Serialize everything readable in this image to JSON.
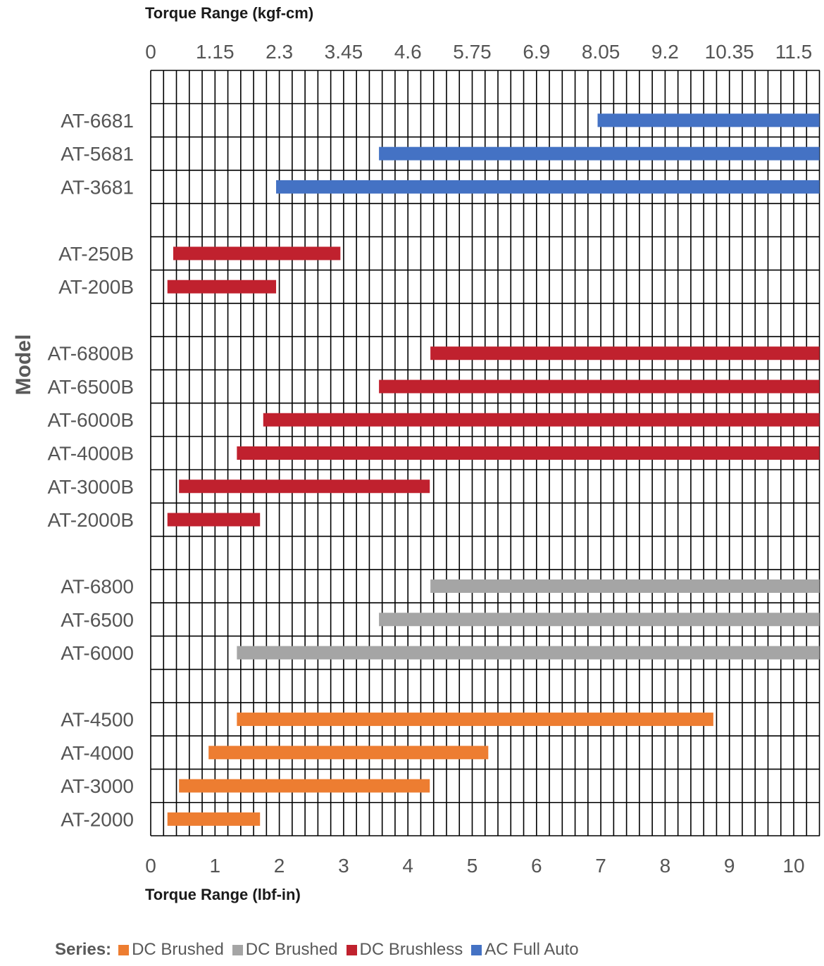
{
  "chart_data": {
    "type": "bar",
    "orientation": "horizontal-range",
    "title_top": "Torque Range (kgf-cm)",
    "xlabel": "Torque Range (lbf-in)",
    "ylabel": "Model",
    "xlim": [
      0,
      10.4
    ],
    "x_ticks": [
      "0",
      "1",
      "2",
      "3",
      "4",
      "5",
      "6",
      "7",
      "8",
      "9",
      "10"
    ],
    "x_ticks_top": [
      "0",
      "1.15",
      "2.3",
      "3.45",
      "4.6",
      "5.75",
      "6.9",
      "8.05",
      "9.2",
      "10.35",
      "11.5"
    ],
    "grid": true,
    "legend_placement": "bottom",
    "legend_title": "Series:",
    "legend": [
      {
        "label": "DC Brushed",
        "color": "#ed7d31"
      },
      {
        "label": "DC Brushed",
        "color": "#a5a5a5"
      },
      {
        "label": "DC Brushless",
        "color": "#c0212e"
      },
      {
        "label": "AC Full Auto",
        "color": "#4472c4"
      }
    ],
    "colors": {
      "orange": "#ed7d31",
      "gray": "#a5a5a5",
      "red": "#c0212e",
      "blue": "#4472c4"
    },
    "rows": [
      {
        "label": "",
        "start": null,
        "end": null,
        "color": null
      },
      {
        "label": "AT-6681",
        "start": 6.95,
        "end": 10.4,
        "color": "blue"
      },
      {
        "label": "AT-5681",
        "start": 3.55,
        "end": 10.4,
        "color": "blue"
      },
      {
        "label": "AT-3681",
        "start": 1.95,
        "end": 10.4,
        "color": "blue"
      },
      {
        "label": "",
        "start": null,
        "end": null,
        "color": null
      },
      {
        "label": "AT-250B",
        "start": 0.35,
        "end": 2.95,
        "color": "red"
      },
      {
        "label": "AT-200B",
        "start": 0.26,
        "end": 1.95,
        "color": "red"
      },
      {
        "label": "",
        "start": null,
        "end": null,
        "color": null
      },
      {
        "label": "AT-6800B",
        "start": 4.35,
        "end": 10.4,
        "color": "red"
      },
      {
        "label": "AT-6500B",
        "start": 3.55,
        "end": 10.4,
        "color": "red"
      },
      {
        "label": "AT-6000B",
        "start": 1.75,
        "end": 10.4,
        "color": "red"
      },
      {
        "label": "AT-4000B",
        "start": 1.34,
        "end": 10.4,
        "color": "red"
      },
      {
        "label": "AT-3000B",
        "start": 0.44,
        "end": 4.34,
        "color": "red"
      },
      {
        "label": "AT-2000B",
        "start": 0.26,
        "end": 1.7,
        "color": "red"
      },
      {
        "label": "",
        "start": null,
        "end": null,
        "color": null
      },
      {
        "label": "AT-6800",
        "start": 4.35,
        "end": 10.4,
        "color": "gray"
      },
      {
        "label": "AT-6500",
        "start": 3.55,
        "end": 10.4,
        "color": "gray"
      },
      {
        "label": "AT-6000",
        "start": 1.34,
        "end": 10.4,
        "color": "gray"
      },
      {
        "label": "",
        "start": null,
        "end": null,
        "color": null
      },
      {
        "label": "AT-4500",
        "start": 1.34,
        "end": 8.75,
        "color": "orange"
      },
      {
        "label": "AT-4000",
        "start": 0.9,
        "end": 5.25,
        "color": "orange"
      },
      {
        "label": "AT-3000",
        "start": 0.44,
        "end": 4.34,
        "color": "orange"
      },
      {
        "label": "AT-2000",
        "start": 0.26,
        "end": 1.7,
        "color": "orange"
      }
    ]
  }
}
